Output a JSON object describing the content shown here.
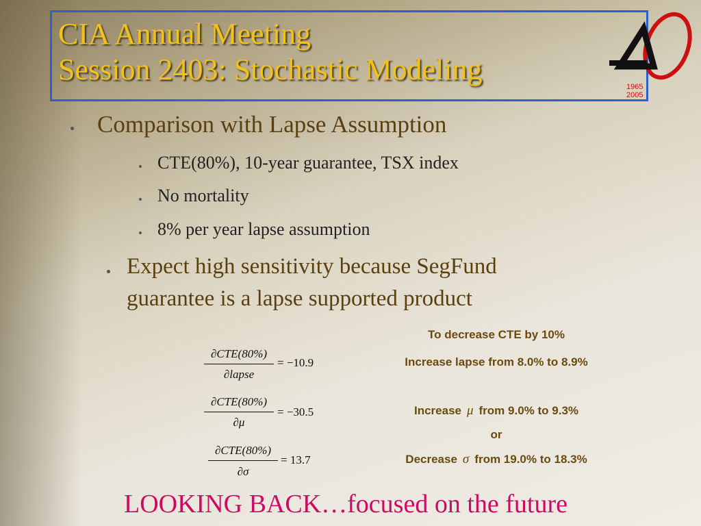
{
  "header": {
    "title_line1": "CIA Annual Meeting",
    "title_line2": "Session 2403: Stochastic Modeling",
    "logo_years": [
      "1965",
      "2005"
    ]
  },
  "bullets": [
    {
      "text": "Comparison with Lapse Assumption",
      "sub": [
        "CTE(80%), 10-year guarantee, TSX index",
        "No mortality",
        "8% per year lapse assumption"
      ]
    },
    {
      "text_line1": "Expect high sensitivity because SegFund",
      "text_line2": "guarantee is a lapse supported product"
    }
  ],
  "equations": [
    {
      "numerator": "∂CTE(80%)",
      "denominator": "∂lapse",
      "result": "= −10.9"
    },
    {
      "numerator": "∂CTE(80%)",
      "denominator": "∂μ",
      "result": "= −30.5"
    },
    {
      "numerator": "∂CTE(80%)",
      "denominator": "∂σ",
      "result": "= 13.7"
    }
  ],
  "notes": {
    "heading": "To decrease CTE by 10%",
    "lapse": "Increase lapse from 8.0% to 8.9%",
    "mu": {
      "verb": "Increase",
      "symbol": "μ",
      "rest": "from 9.0% to 9.3%"
    },
    "or": "or",
    "sigma": {
      "verb": "Decrease",
      "symbol": "σ",
      "rest": "from 19.0% to 18.3%"
    }
  },
  "footer": "LOOKING BACK…focused on the future"
}
